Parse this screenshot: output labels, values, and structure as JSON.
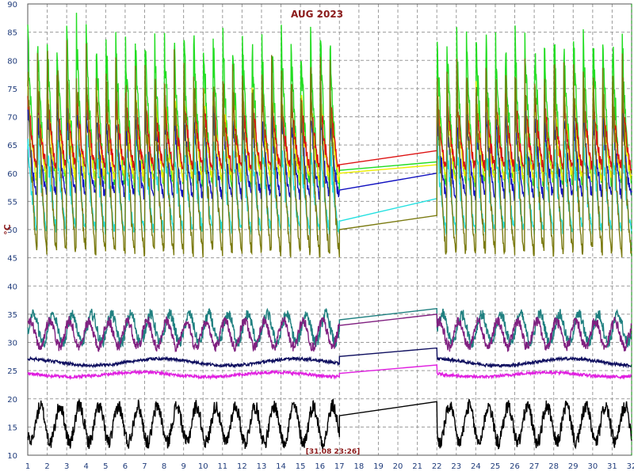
{
  "chart_data": {
    "type": "line",
    "title": "AUG 2023",
    "ylabel": "°C",
    "xlabel": "",
    "xlim": [
      1,
      32
    ],
    "ylim": [
      10,
      90
    ],
    "xticks": [
      1,
      2,
      3,
      4,
      5,
      6,
      7,
      8,
      9,
      10,
      11,
      12,
      13,
      14,
      15,
      16,
      17,
      18,
      19,
      20,
      21,
      22,
      23,
      24,
      25,
      26,
      27,
      28,
      29,
      30,
      31,
      32
    ],
    "yticks": [
      10,
      15,
      20,
      25,
      30,
      35,
      40,
      45,
      50,
      55,
      60,
      65,
      70,
      75,
      80,
      85,
      90
    ],
    "grid": true,
    "cursor_label": "[31.08 23:26]",
    "cursor_x": 32,
    "gap": [
      17,
      22
    ],
    "series": [
      {
        "color": "#22dd22",
        "kind": "saw",
        "base": 58,
        "amp": 26,
        "x": [
          17,
          22
        ],
        "y": [
          60.5,
          62.0
        ]
      },
      {
        "color": "#eeee00",
        "kind": "saw",
        "base": 59,
        "amp": 16,
        "x": [
          17,
          22
        ],
        "y": [
          60.0,
          61.5
        ]
      },
      {
        "color": "#dd1111",
        "kind": "saw",
        "base": 61,
        "amp": 13,
        "x": [
          17,
          22
        ],
        "y": [
          61.5,
          64.0
        ]
      },
      {
        "color": "#1010c0",
        "kind": "saw",
        "base": 56,
        "amp": 15,
        "x": [
          17,
          22
        ],
        "y": [
          57.0,
          60.0
        ]
      },
      {
        "color": "#22e0e0",
        "kind": "saw",
        "base": 50,
        "amp": 16,
        "x": [
          17,
          22
        ],
        "y": [
          51.5,
          55.5
        ]
      },
      {
        "color": "#7a7a10",
        "kind": "saw",
        "base": 46,
        "amp": 33,
        "x": [
          17,
          22
        ],
        "y": [
          50.0,
          52.5
        ]
      },
      {
        "color": "#208080",
        "kind": "wave",
        "base": 32.5,
        "amp": 2.5,
        "x": [
          17,
          22
        ],
        "y": [
          34.0,
          36.0
        ]
      },
      {
        "color": "#802080",
        "kind": "wave",
        "base": 31.5,
        "amp": 2.3,
        "x": [
          17,
          22
        ],
        "y": [
          33.0,
          35.0
        ]
      },
      {
        "color": "#101060",
        "kind": "smooth",
        "base": 26.5,
        "amp": 0.6,
        "x": [
          17,
          22
        ],
        "y": [
          27.5,
          29.0
        ]
      },
      {
        "color": "#e020e0",
        "kind": "smooth",
        "base": 24.3,
        "amp": 0.4,
        "x": [
          17,
          22
        ],
        "y": [
          24.5,
          26.0
        ]
      },
      {
        "color": "#000000",
        "kind": "wave",
        "base": 15.5,
        "amp": 3.2,
        "x": [
          17,
          22
        ],
        "y": [
          17.0,
          19.5
        ]
      }
    ]
  }
}
